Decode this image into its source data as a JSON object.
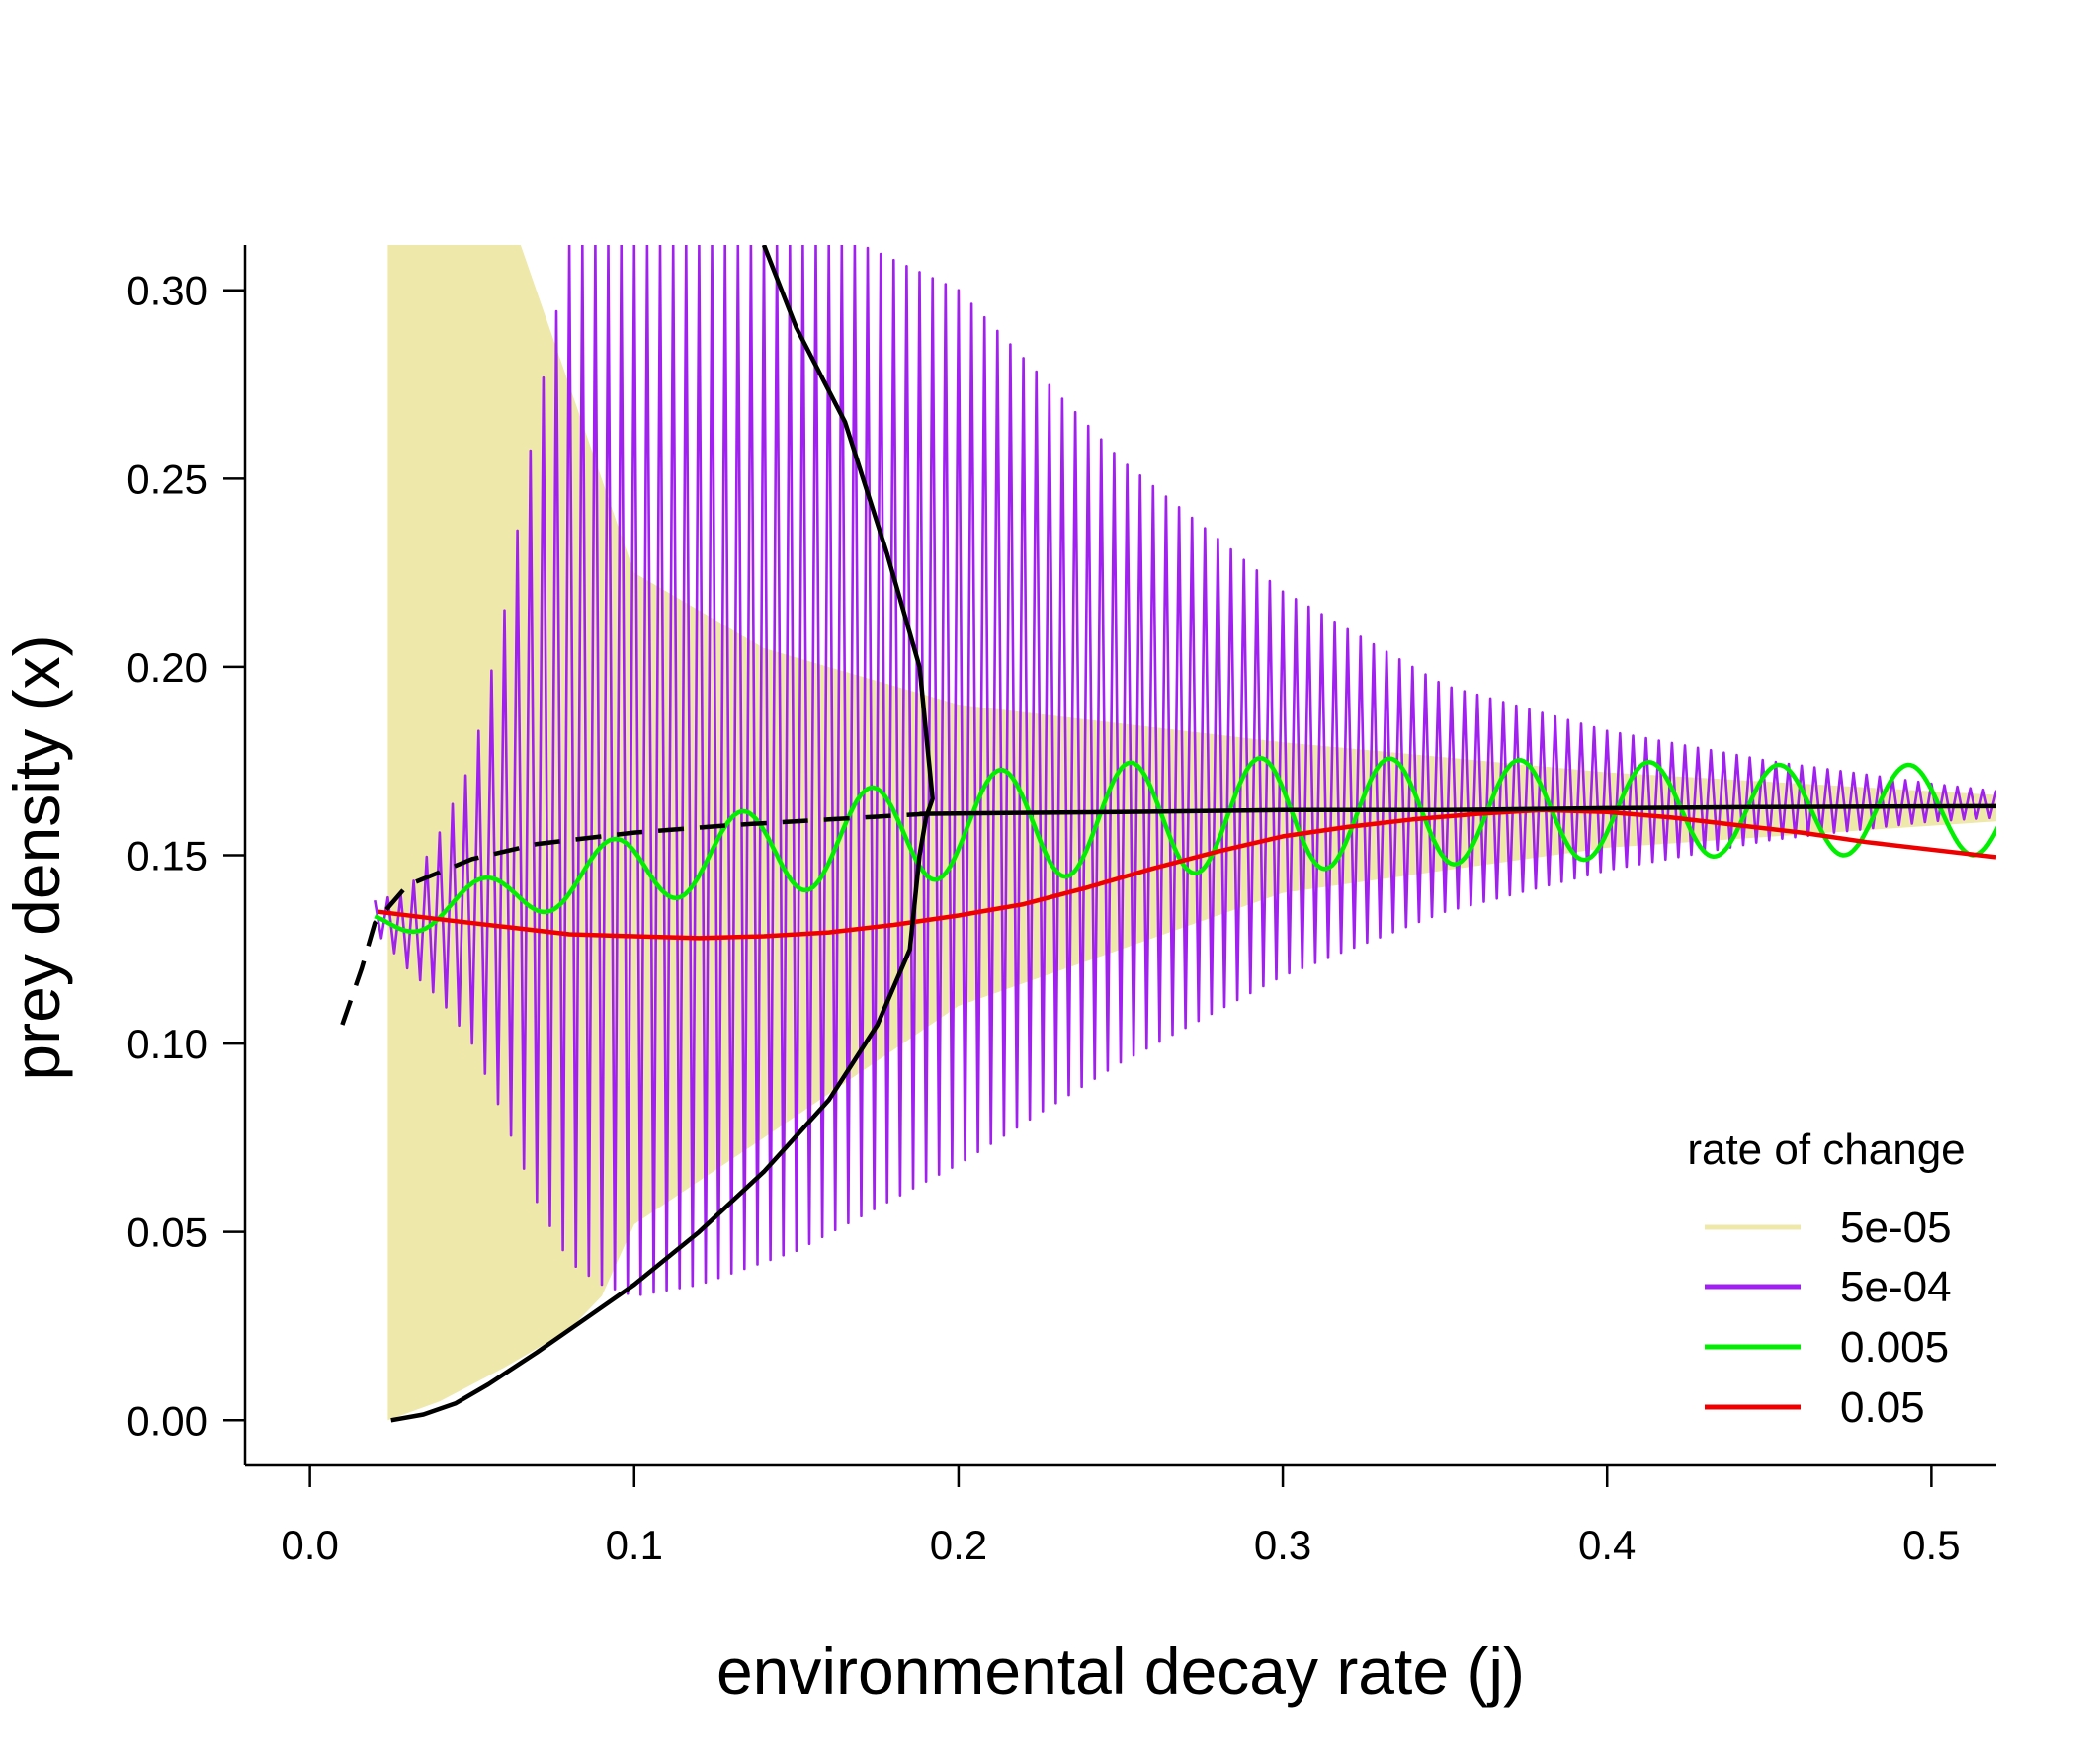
{
  "chart_data": {
    "type": "line",
    "xlabel": "environmental decay rate (j)",
    "ylabel": "prey density (x)",
    "xlim": [
      -0.02,
      0.52
    ],
    "ylim": [
      -0.012,
      0.312
    ],
    "x_ticks": [
      "0.0",
      "0.1",
      "0.2",
      "0.3",
      "0.4",
      "0.5"
    ],
    "y_ticks": [
      "0.00",
      "0.05",
      "0.10",
      "0.15",
      "0.20",
      "0.25",
      "0.30"
    ],
    "grid": false,
    "legend": {
      "title": "rate of change",
      "placement": "bottom-right",
      "entries": [
        {
          "label": "5e-05",
          "color": "#EEE8AA"
        },
        {
          "label": "5e-04",
          "color": "#A020F0"
        },
        {
          "label": "0.005",
          "color": "#00EE00"
        },
        {
          "label": "0.05",
          "color": "#EE0000"
        }
      ]
    },
    "series": [
      {
        "name": "5e-05",
        "color": "#EEE8AA",
        "style": "filled oscillation envelope",
        "upper": [
          [
            0.024,
            0.312
          ],
          [
            0.065,
            0.312
          ],
          [
            0.1,
            0.225
          ],
          [
            0.14,
            0.205
          ],
          [
            0.2,
            0.19
          ],
          [
            0.3,
            0.18
          ],
          [
            0.4,
            0.172
          ],
          [
            0.52,
            0.166
          ]
        ],
        "lower": [
          [
            0.024,
            0.0
          ],
          [
            0.04,
            0.005
          ],
          [
            0.06,
            0.014
          ],
          [
            0.08,
            0.024
          ],
          [
            0.09,
            0.033
          ],
          [
            0.1,
            0.052
          ],
          [
            0.14,
            0.075
          ],
          [
            0.2,
            0.11
          ],
          [
            0.3,
            0.14
          ],
          [
            0.4,
            0.152
          ],
          [
            0.52,
            0.159
          ]
        ]
      },
      {
        "name": "5e-04",
        "color": "#A020F0",
        "style": "dense oscillation",
        "upper": [
          [
            0.02,
            0.138
          ],
          [
            0.03,
            0.14
          ],
          [
            0.04,
            0.156
          ],
          [
            0.05,
            0.175
          ],
          [
            0.06,
            0.215
          ],
          [
            0.07,
            0.268
          ],
          [
            0.08,
            0.312
          ],
          [
            0.17,
            0.312
          ],
          [
            0.2,
            0.3
          ],
          [
            0.25,
            0.255
          ],
          [
            0.3,
            0.22
          ],
          [
            0.35,
            0.195
          ],
          [
            0.4,
            0.183
          ],
          [
            0.45,
            0.175
          ],
          [
            0.5,
            0.169
          ],
          [
            0.52,
            0.167
          ]
        ],
        "lower": [
          [
            0.02,
            0.13
          ],
          [
            0.03,
            0.12
          ],
          [
            0.04,
            0.112
          ],
          [
            0.05,
            0.1
          ],
          [
            0.06,
            0.08
          ],
          [
            0.07,
            0.058
          ],
          [
            0.08,
            0.042
          ],
          [
            0.09,
            0.036
          ],
          [
            0.1,
            0.033
          ],
          [
            0.12,
            0.036
          ],
          [
            0.15,
            0.045
          ],
          [
            0.2,
            0.068
          ],
          [
            0.25,
            0.095
          ],
          [
            0.3,
            0.118
          ],
          [
            0.35,
            0.135
          ],
          [
            0.4,
            0.146
          ],
          [
            0.45,
            0.154
          ],
          [
            0.5,
            0.159
          ],
          [
            0.52,
            0.16
          ]
        ],
        "period": 0.004
      },
      {
        "name": "0.005",
        "color": "#00EE00",
        "style": "oscillation",
        "center": [
          [
            0.02,
            0.132
          ],
          [
            0.1,
            0.147
          ],
          [
            0.2,
            0.158
          ],
          [
            0.3,
            0.161
          ],
          [
            0.4,
            0.162
          ],
          [
            0.52,
            0.162
          ]
        ],
        "amplitude": [
          [
            0.02,
            0.004
          ],
          [
            0.06,
            0.006
          ],
          [
            0.1,
            0.009
          ],
          [
            0.15,
            0.012
          ],
          [
            0.2,
            0.014
          ],
          [
            0.25,
            0.015
          ],
          [
            0.3,
            0.015
          ],
          [
            0.35,
            0.014
          ],
          [
            0.4,
            0.013
          ],
          [
            0.45,
            0.012
          ],
          [
            0.52,
            0.012
          ]
        ],
        "period": 0.04,
        "peak_x": 0.053
      },
      {
        "name": "0.05",
        "color": "#EE0000",
        "style": "line",
        "points": [
          [
            0.021,
            0.135
          ],
          [
            0.04,
            0.133
          ],
          [
            0.06,
            0.131
          ],
          [
            0.08,
            0.129
          ],
          [
            0.1,
            0.1285
          ],
          [
            0.12,
            0.128
          ],
          [
            0.14,
            0.1285
          ],
          [
            0.16,
            0.1295
          ],
          [
            0.18,
            0.1315
          ],
          [
            0.2,
            0.134
          ],
          [
            0.22,
            0.137
          ],
          [
            0.24,
            0.1415
          ],
          [
            0.26,
            0.1465
          ],
          [
            0.28,
            0.151
          ],
          [
            0.3,
            0.155
          ],
          [
            0.32,
            0.1575
          ],
          [
            0.34,
            0.1595
          ],
          [
            0.36,
            0.161
          ],
          [
            0.38,
            0.162
          ],
          [
            0.4,
            0.1615
          ],
          [
            0.42,
            0.16
          ],
          [
            0.44,
            0.158
          ],
          [
            0.46,
            0.156
          ],
          [
            0.48,
            0.1535
          ],
          [
            0.5,
            0.1515
          ],
          [
            0.52,
            0.1495
          ]
        ]
      },
      {
        "name": "",
        "color": "#000000",
        "style": "solid",
        "points": [
          [
            0.025,
            0.0
          ],
          [
            0.035,
            0.0015
          ],
          [
            0.045,
            0.0045
          ],
          [
            0.055,
            0.0095
          ],
          [
            0.07,
            0.018
          ],
          [
            0.085,
            0.027
          ],
          [
            0.1,
            0.036
          ],
          [
            0.12,
            0.05
          ],
          [
            0.14,
            0.066
          ],
          [
            0.16,
            0.085
          ],
          [
            0.175,
            0.105
          ],
          [
            0.185,
            0.125
          ],
          [
            0.188,
            0.15
          ],
          [
            0.19,
            0.16
          ],
          [
            0.192,
            0.165
          ],
          [
            0.188,
            0.2
          ],
          [
            0.178,
            0.23
          ],
          [
            0.165,
            0.265
          ],
          [
            0.15,
            0.29
          ],
          [
            0.14,
            0.312
          ]
        ]
      },
      {
        "name": "",
        "color": "#000000",
        "style": "solid",
        "points": [
          [
            0.188,
            0.161
          ],
          [
            0.25,
            0.1615
          ],
          [
            0.3,
            0.162
          ],
          [
            0.35,
            0.162
          ],
          [
            0.4,
            0.1625
          ],
          [
            0.45,
            0.1628
          ],
          [
            0.52,
            0.163
          ]
        ]
      },
      {
        "name": "",
        "color": "#000000",
        "style": "dashed",
        "points": [
          [
            0.01,
            0.105
          ],
          [
            0.016,
            0.12
          ],
          [
            0.02,
            0.132
          ],
          [
            0.03,
            0.142
          ],
          [
            0.05,
            0.149
          ],
          [
            0.07,
            0.153
          ],
          [
            0.1,
            0.156
          ],
          [
            0.13,
            0.158
          ],
          [
            0.16,
            0.1595
          ],
          [
            0.19,
            0.161
          ]
        ]
      }
    ]
  }
}
